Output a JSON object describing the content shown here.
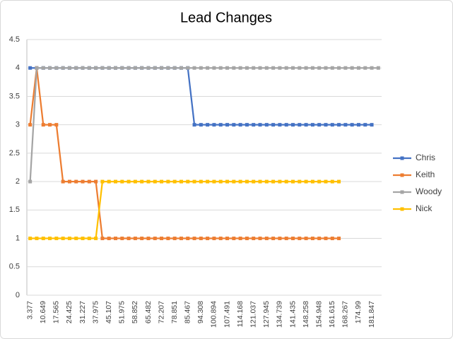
{
  "chart_data": {
    "type": "line",
    "title": "Lead Changes",
    "categories": [
      "3.377",
      null,
      "10.649",
      null,
      "17.565",
      null,
      "24.425",
      null,
      "31.227",
      null,
      "37.975",
      null,
      "45.107",
      null,
      "51.975",
      null,
      "58.852",
      null,
      "65.482",
      null,
      "72.207",
      null,
      "78.851",
      null,
      "85.467",
      null,
      "94.308",
      null,
      "100.894",
      null,
      "107.491",
      null,
      "114.168",
      null,
      "121.037",
      null,
      "127.945",
      null,
      "134.739",
      null,
      "141.435",
      null,
      "148.258",
      null,
      "154.948",
      null,
      "161.615",
      null,
      "168.267",
      null,
      "174.99",
      null,
      "181.847",
      null
    ],
    "series": [
      {
        "name": "Chris",
        "color": "#4472c4",
        "values": [
          4,
          4,
          4,
          4,
          4,
          4,
          4,
          4,
          4,
          4,
          4,
          4,
          4,
          4,
          4,
          4,
          4,
          4,
          4,
          4,
          4,
          4,
          4,
          4,
          4,
          3,
          3,
          3,
          3,
          3,
          3,
          3,
          3,
          3,
          3,
          3,
          3,
          3,
          3,
          3,
          3,
          3,
          3,
          3,
          3,
          3,
          3,
          3,
          3,
          3,
          3,
          3,
          3,
          null
        ]
      },
      {
        "name": "Keith",
        "color": "#ed7d31",
        "values": [
          3,
          4,
          3,
          3,
          3,
          2,
          2,
          2,
          2,
          2,
          2,
          1,
          1,
          1,
          1,
          1,
          1,
          1,
          1,
          1,
          1,
          1,
          1,
          1,
          1,
          1,
          1,
          1,
          1,
          1,
          1,
          1,
          1,
          1,
          1,
          1,
          1,
          1,
          1,
          1,
          1,
          1,
          1,
          1,
          1,
          1,
          1,
          1,
          null,
          null,
          null,
          null,
          null,
          null
        ]
      },
      {
        "name": "Woody",
        "color": "#a5a5a5",
        "values": [
          2,
          4,
          4,
          4,
          4,
          4,
          4,
          4,
          4,
          4,
          4,
          4,
          4,
          4,
          4,
          4,
          4,
          4,
          4,
          4,
          4,
          4,
          4,
          4,
          4,
          4,
          4,
          4,
          4,
          4,
          4,
          4,
          4,
          4,
          4,
          4,
          4,
          4,
          4,
          4,
          4,
          4,
          4,
          4,
          4,
          4,
          4,
          4,
          4,
          4,
          4,
          4,
          4,
          4
        ]
      },
      {
        "name": "Nick",
        "color": "#ffc000",
        "values": [
          1,
          1,
          1,
          1,
          1,
          1,
          1,
          1,
          1,
          1,
          1,
          2,
          2,
          2,
          2,
          2,
          2,
          2,
          2,
          2,
          2,
          2,
          2,
          2,
          2,
          2,
          2,
          2,
          2,
          2,
          2,
          2,
          2,
          2,
          2,
          2,
          2,
          2,
          2,
          2,
          2,
          2,
          2,
          2,
          2,
          2,
          2,
          2,
          null,
          null,
          null,
          null,
          null,
          null
        ]
      }
    ],
    "ylim": [
      0,
      4.5
    ],
    "yticks": [
      0,
      0.5,
      1,
      1.5,
      2,
      2.5,
      3,
      3.5,
      4,
      4.5
    ],
    "grid": true,
    "legend": "right"
  }
}
